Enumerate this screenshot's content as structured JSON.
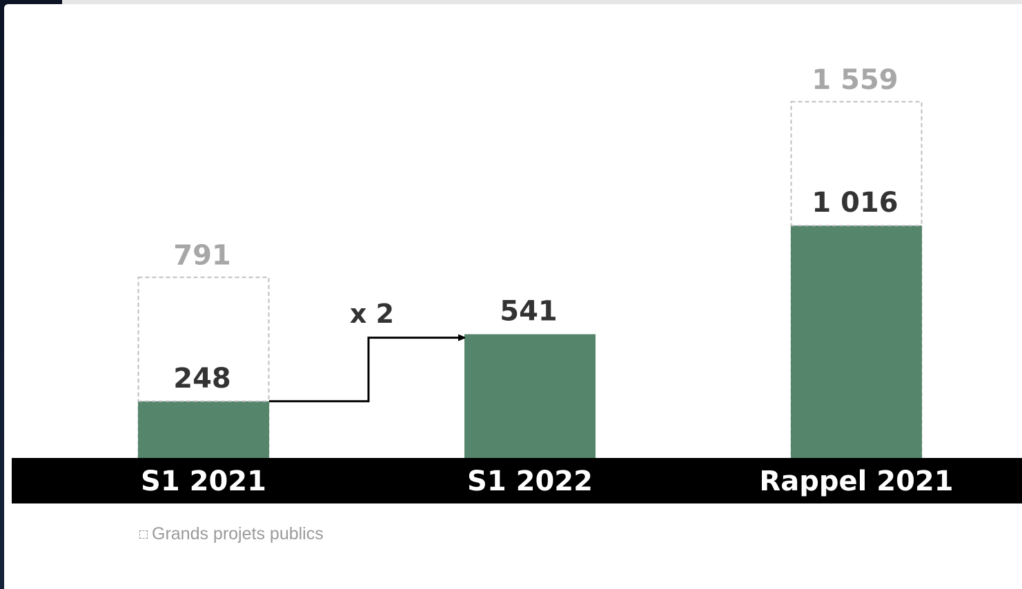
{
  "colors": {
    "bar_fill": "#55856b",
    "dashed_outline": "#bfbfbf",
    "category_band": "#000000",
    "total_label": "#a7a7a7",
    "value_label": "#333333"
  },
  "chart_data": {
    "type": "bar",
    "categories": [
      "S1 2021",
      "S1 2022",
      "Rappel 2021"
    ],
    "series": [
      {
        "values": [
          248,
          541,
          1016
        ],
        "labels": [
          "248",
          "541",
          "1 016"
        ]
      }
    ],
    "totals": [
      791,
      null,
      1559
    ],
    "total_labels": [
      "791",
      "",
      "1 559"
    ],
    "annotation": {
      "text": "x 2",
      "from": "S1 2021",
      "to": "S1 2022"
    },
    "ylim": [
      0,
      1559
    ],
    "grid": false
  },
  "legend": {
    "label": "Grands projets publics",
    "icon": "dashed-square-icon"
  }
}
